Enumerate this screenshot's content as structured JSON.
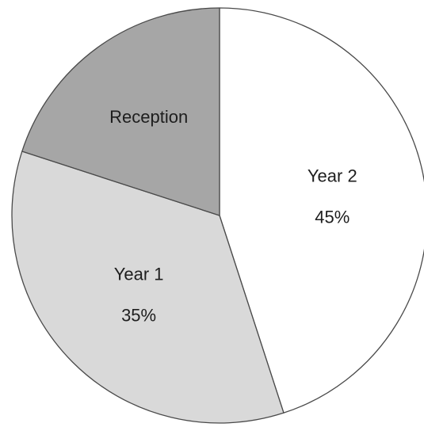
{
  "chart_data": {
    "type": "pie",
    "title": "",
    "start": "top",
    "direction": "clockwise",
    "slices": [
      {
        "label": "Year 2",
        "value": 45,
        "value_label": "45%",
        "color": "#ffffff"
      },
      {
        "label": "Year 1",
        "value": 35,
        "value_label": "35%",
        "color": "#d9d9d9"
      },
      {
        "label": "Reception",
        "value": 20,
        "value_label": "",
        "color": "#a6a6a6"
      }
    ]
  }
}
